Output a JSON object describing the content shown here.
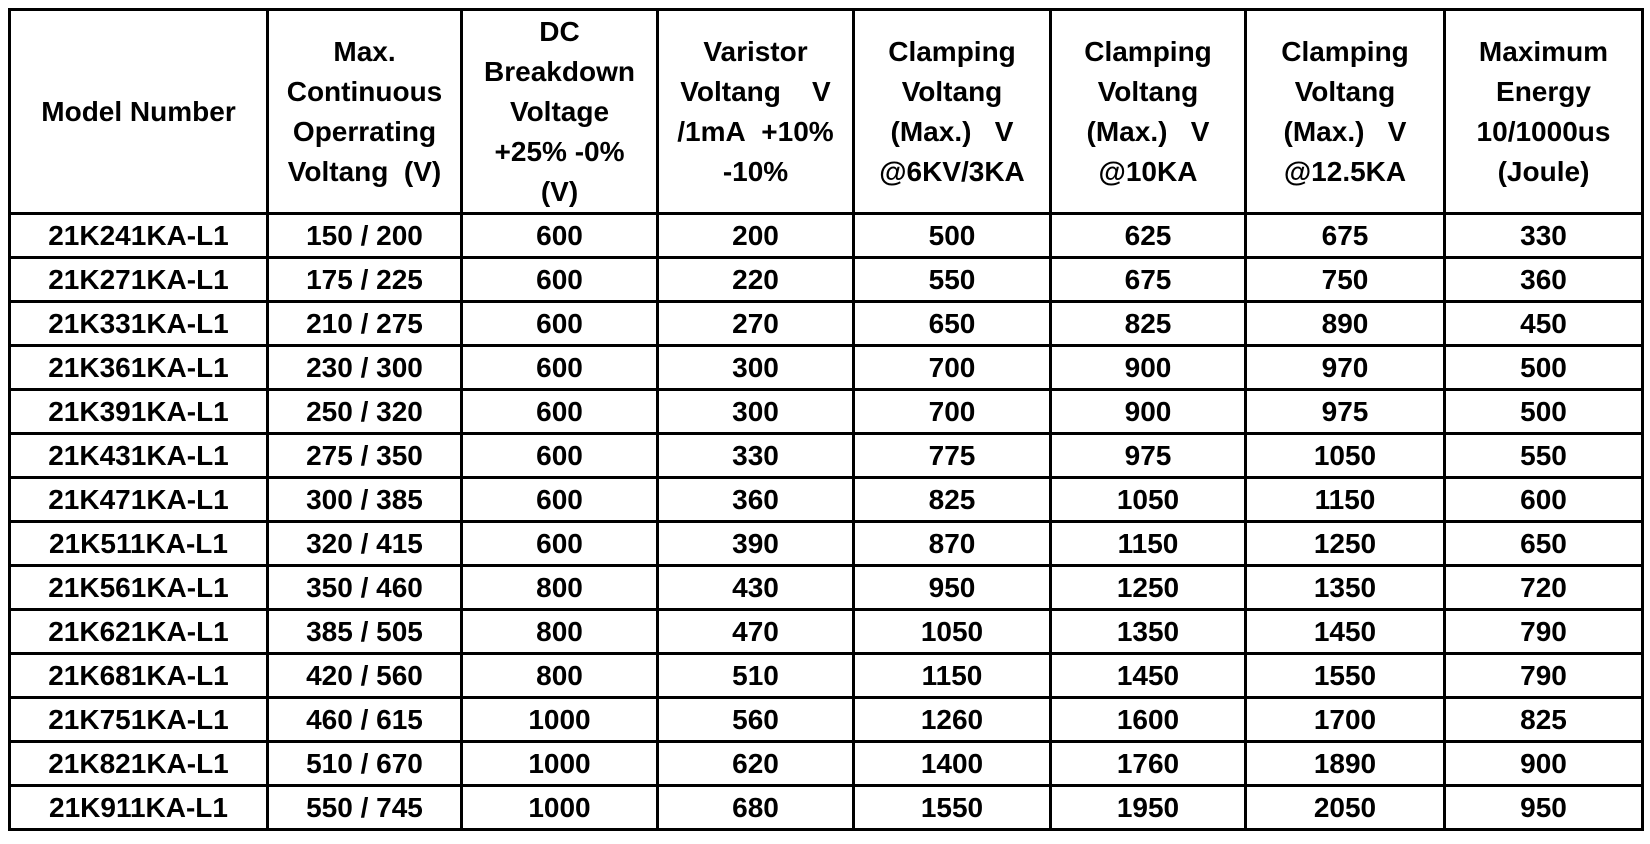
{
  "page": {
    "background_color": "#ffffff",
    "grid_color": "#000000",
    "text_color": "#000000"
  },
  "table": {
    "columns": [
      {
        "header": "Model Number"
      },
      {
        "header": "Max.\nContinuous\nOperrating\nVoltang  (V)"
      },
      {
        "header": "DC\nBreakdown\nVoltage\n+25% -0%\n(V)"
      },
      {
        "header": "Varistor\nVoltang    V\n/1mA  +10%\n-10%"
      },
      {
        "header": "Clamping\nVoltang\n(Max.)   V\n@6KV/3KA"
      },
      {
        "header": "Clamping\nVoltang\n(Max.)   V\n@10KA"
      },
      {
        "header": "Clamping\nVoltang\n(Max.)   V\n@12.5KA"
      },
      {
        "header": "Maximum\nEnergy\n10/1000us\n(Joule)"
      }
    ],
    "rows": [
      [
        "21K241KA-L1",
        "150 / 200",
        "600",
        "200",
        "500",
        "625",
        "675",
        "330"
      ],
      [
        "21K271KA-L1",
        "175 / 225",
        "600",
        "220",
        "550",
        "675",
        "750",
        "360"
      ],
      [
        "21K331KA-L1",
        "210 / 275",
        "600",
        "270",
        "650",
        "825",
        "890",
        "450"
      ],
      [
        "21K361KA-L1",
        "230 / 300",
        "600",
        "300",
        "700",
        "900",
        "970",
        "500"
      ],
      [
        "21K391KA-L1",
        "250 / 320",
        "600",
        "300",
        "700",
        "900",
        "975",
        "500"
      ],
      [
        "21K431KA-L1",
        "275 / 350",
        "600",
        "330",
        "775",
        "975",
        "1050",
        "550"
      ],
      [
        "21K471KA-L1",
        "300 / 385",
        "600",
        "360",
        "825",
        "1050",
        "1150",
        "600"
      ],
      [
        "21K511KA-L1",
        "320 / 415",
        "600",
        "390",
        "870",
        "1150",
        "1250",
        "650"
      ],
      [
        "21K561KA-L1",
        "350 / 460",
        "800",
        "430",
        "950",
        "1250",
        "1350",
        "720"
      ],
      [
        "21K621KA-L1",
        "385 / 505",
        "800",
        "470",
        "1050",
        "1350",
        "1450",
        "790"
      ],
      [
        "21K681KA-L1",
        "420 / 560",
        "800",
        "510",
        "1150",
        "1450",
        "1550",
        "790"
      ],
      [
        "21K751KA-L1",
        "460 / 615",
        "1000",
        "560",
        "1260",
        "1600",
        "1700",
        "825"
      ],
      [
        "21K821KA-L1",
        "510 / 670",
        "1000",
        "620",
        "1400",
        "1760",
        "1890",
        "900"
      ],
      [
        "21K911KA-L1",
        "550 / 745",
        "1000",
        "680",
        "1550",
        "1950",
        "2050",
        "950"
      ]
    ]
  }
}
